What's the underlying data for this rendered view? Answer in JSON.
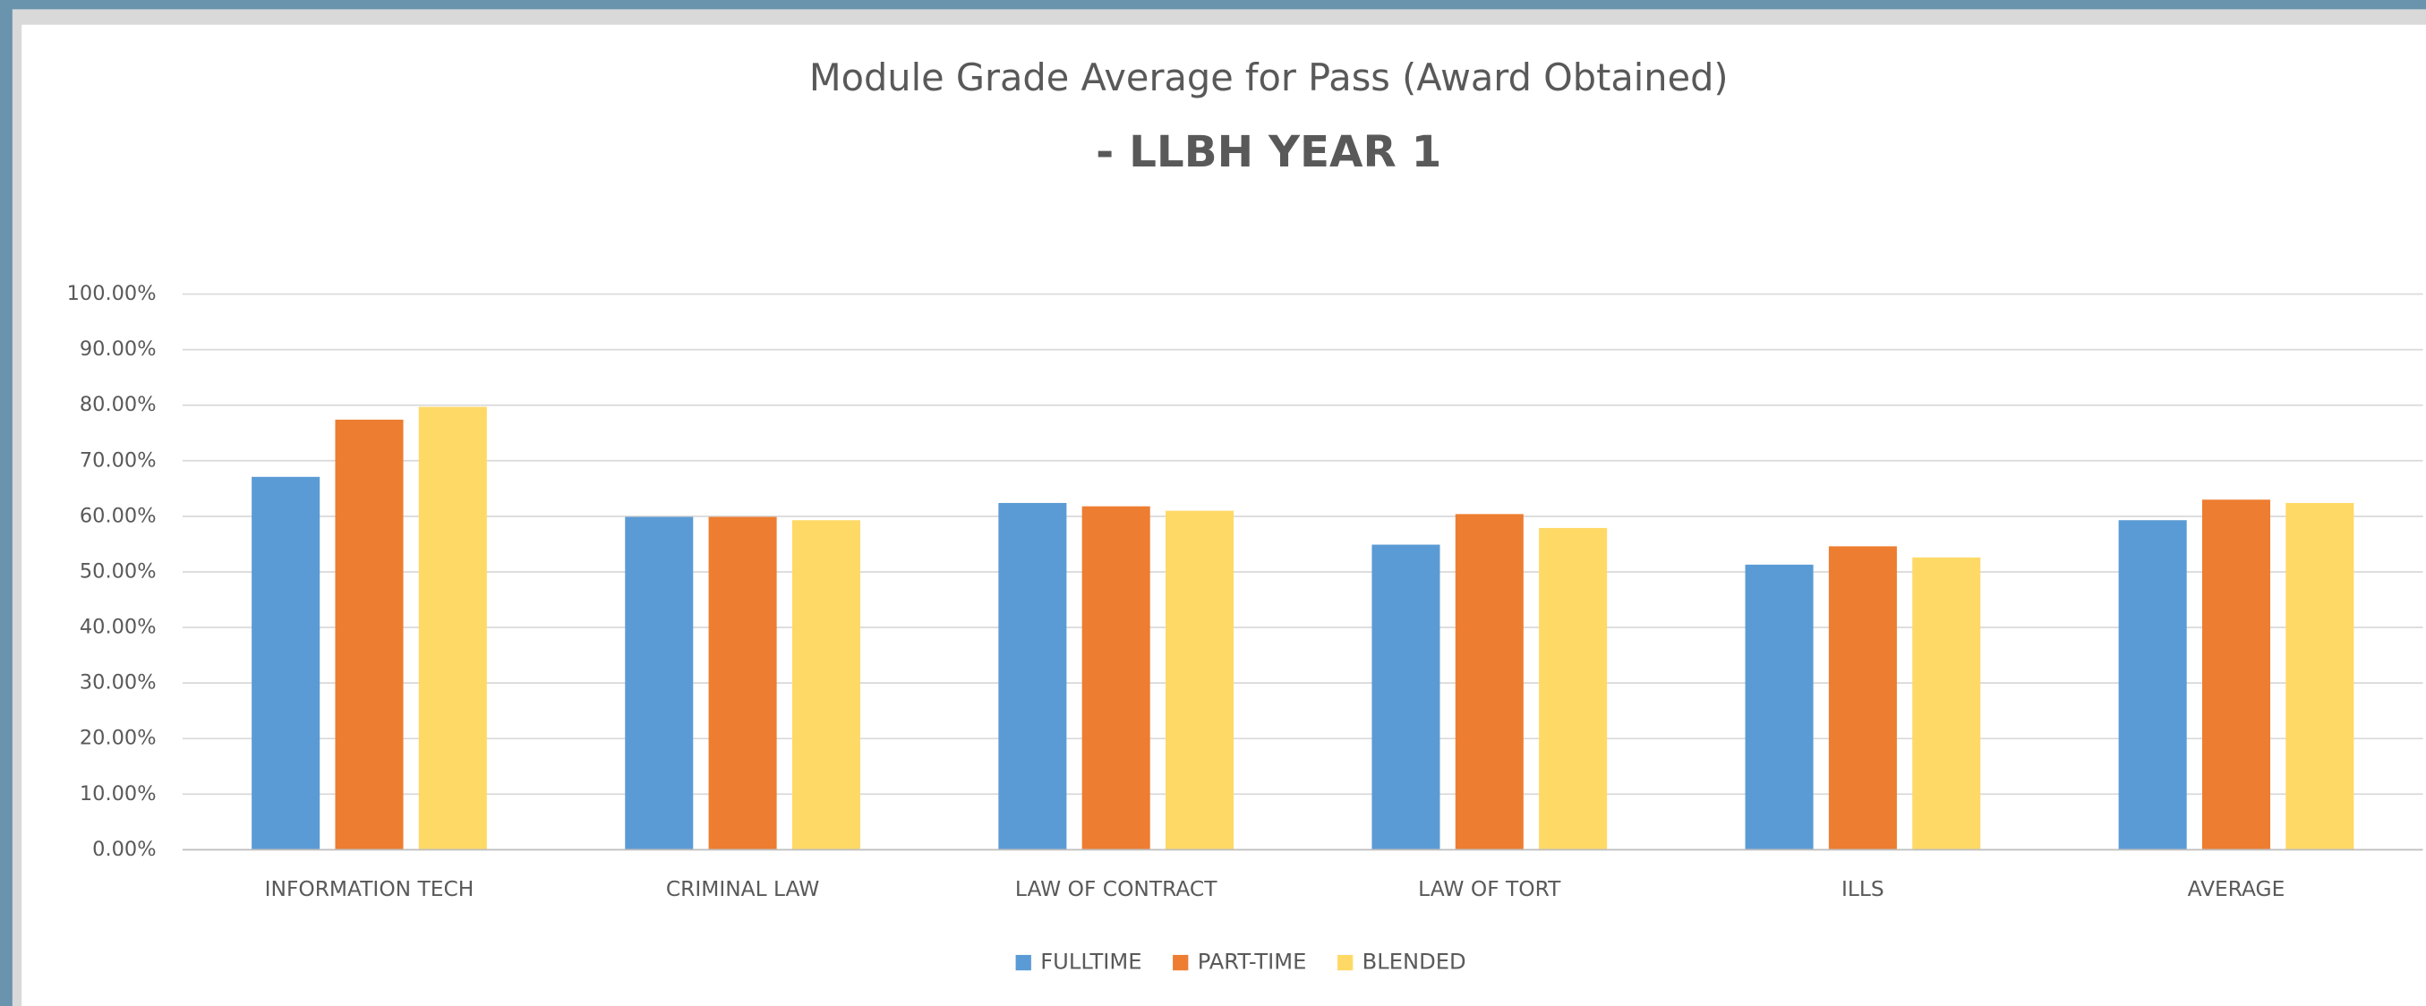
{
  "chart_data": {
    "type": "bar",
    "title": "Module Grade Average for Pass (Award Obtained)",
    "subtitle": "- LLBH YEAR 1",
    "categories": [
      "INFORMATION TECH",
      "CRIMINAL LAW",
      "LAW OF CONTRACT",
      "LAW OF TORT",
      "ILLS",
      "AVERAGE"
    ],
    "series": [
      {
        "name": "FULLTIME",
        "color": "#5b9bd5",
        "values": [
          67.1,
          59.9,
          62.4,
          54.9,
          51.3,
          59.3
        ]
      },
      {
        "name": "PART-TIME",
        "color": "#ed7d31",
        "values": [
          77.4,
          59.9,
          61.8,
          60.4,
          54.6,
          63.0
        ]
      },
      {
        "name": "BLENDED",
        "color": "#ffd966",
        "values": [
          79.7,
          59.3,
          61.0,
          57.9,
          52.6,
          62.4
        ]
      }
    ],
    "ylim": [
      0,
      100
    ],
    "yticks": [
      {
        "value": 0,
        "label": "0.00%"
      },
      {
        "value": 10,
        "label": "10.00%"
      },
      {
        "value": 20,
        "label": "20.00%"
      },
      {
        "value": 30,
        "label": "30.00%"
      },
      {
        "value": 40,
        "label": "40.00%"
      },
      {
        "value": 50,
        "label": "50.00%"
      },
      {
        "value": 60,
        "label": "60.00%"
      },
      {
        "value": 70,
        "label": "70.00%"
      },
      {
        "value": 80,
        "label": "80.00%"
      },
      {
        "value": 90,
        "label": "90.00%"
      },
      {
        "value": 100,
        "label": "100.00%"
      }
    ],
    "grid": true,
    "legend": "bottom"
  }
}
